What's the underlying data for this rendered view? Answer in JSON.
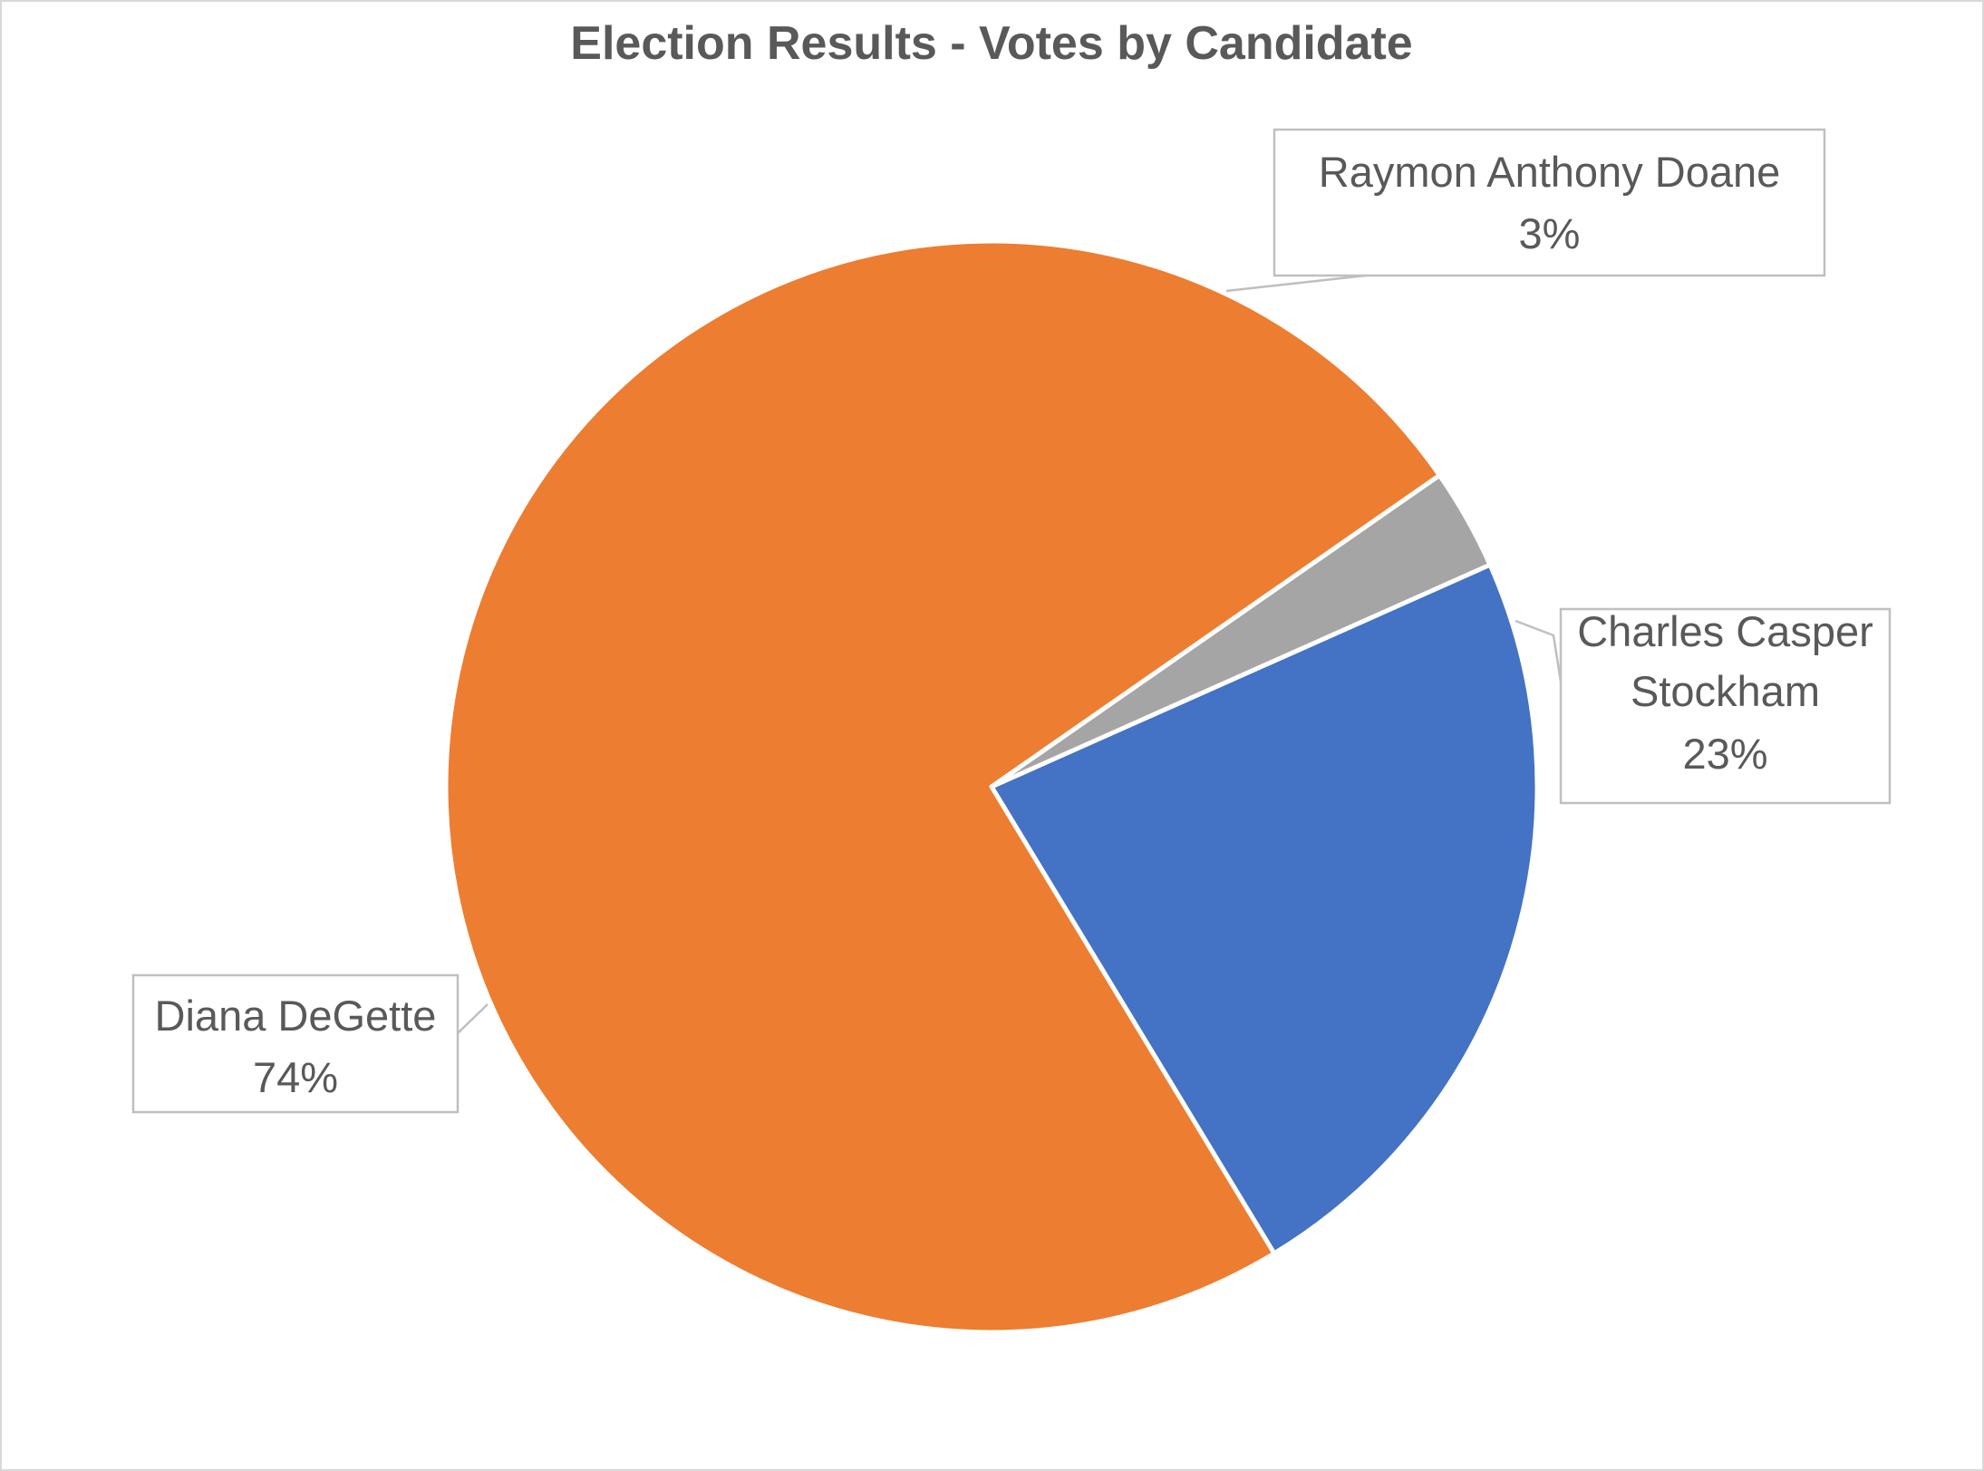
{
  "chart_data": {
    "type": "pie",
    "title": "Election Results - Votes by Candidate",
    "categories": [
      "Charles Casper Stockham",
      "Diana DeGette",
      "Raymon Anthony Doane"
    ],
    "values": [
      23,
      74,
      3
    ],
    "colors": [
      "#4472c4",
      "#ed7d31",
      "#a5a5a5"
    ],
    "data_labels": [
      {
        "name": "Charles Casper Stockham",
        "name_lines": [
          "Charles Casper",
          "Stockham"
        ],
        "percent": "23%"
      },
      {
        "name": "Diana DeGette",
        "name_lines": [
          "Diana DeGette"
        ],
        "percent": "74%"
      },
      {
        "name": "Raymon Anthony Doane",
        "name_lines": [
          "Raymon Anthony Doane"
        ],
        "percent": "3%"
      }
    ],
    "legend": "none"
  }
}
